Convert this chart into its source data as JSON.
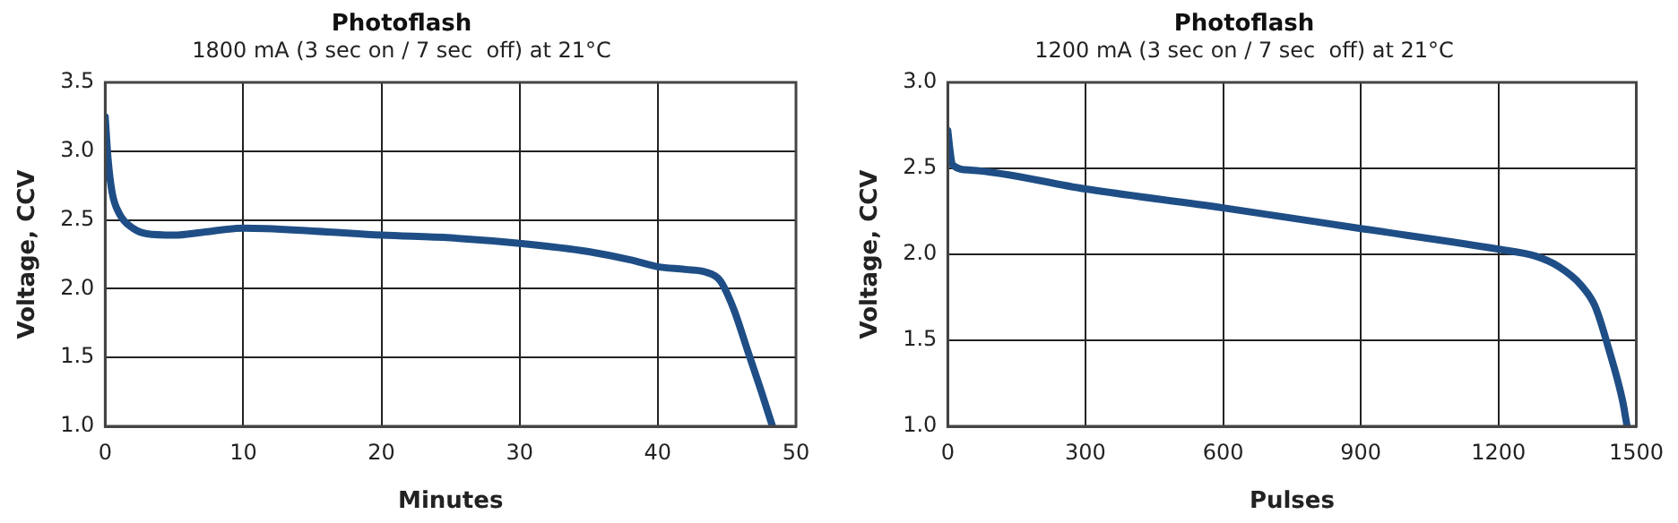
{
  "chart_data": [
    {
      "type": "line",
      "title": "Photoflash",
      "subtitle": "1800 mA (3 sec on / 7 sec  off) at 21°C",
      "xlabel": "Minutes",
      "ylabel": "Voltage, CCV",
      "x": [
        0,
        0.2,
        0.5,
        1,
        2,
        3,
        5,
        7,
        10,
        15,
        20,
        25,
        30,
        35,
        38,
        40,
        42,
        43.5,
        44.5,
        45.5,
        46.5,
        47.5,
        48.3
      ],
      "series": [
        {
          "color": "#1f4e86",
          "values": [
            3.25,
            2.95,
            2.7,
            2.55,
            2.44,
            2.4,
            2.39,
            2.41,
            2.44,
            2.42,
            2.39,
            2.37,
            2.33,
            2.27,
            2.21,
            2.16,
            2.14,
            2.12,
            2.06,
            1.85,
            1.55,
            1.25,
            1.0
          ]
        }
      ],
      "xlim": [
        0,
        50
      ],
      "xticks": [
        0,
        10,
        20,
        30,
        40,
        50
      ],
      "ylim": [
        1,
        3.5
      ],
      "yticks": [
        {
          "value": 1,
          "label": "1.0"
        },
        1.5,
        {
          "value": 2,
          "label": "2.0"
        },
        2.5,
        {
          "value": 3,
          "label": "3.0"
        },
        3.5
      ],
      "grid": true,
      "legend": false,
      "marker": "none",
      "line_style": "solid"
    },
    {
      "type": "line",
      "title": "Photoflash",
      "subtitle": "1200 mA (3 sec on / 7 sec  off) at 21°C",
      "xlabel": "Pulses",
      "ylabel": "Voltage, CCV",
      "x": [
        0,
        5,
        10,
        50,
        300,
        600,
        900,
        1200,
        1280,
        1330,
        1380,
        1410,
        1440,
        1470,
        1480
      ],
      "series": [
        {
          "color": "#1f4e86",
          "values": [
            2.72,
            2.6,
            2.52,
            2.49,
            2.38,
            2.27,
            2.15,
            2.03,
            1.99,
            1.93,
            1.82,
            1.7,
            1.45,
            1.15,
            1.0
          ]
        }
      ],
      "xlim": [
        0,
        1500
      ],
      "xticks": [
        0,
        300,
        600,
        900,
        1200,
        1500
      ],
      "ylim": [
        1,
        3
      ],
      "yticks": [
        {
          "value": 1,
          "label": "1.0"
        },
        1.5,
        {
          "value": 2,
          "label": "2.0"
        },
        2.5,
        {
          "value": 3,
          "label": "3.0"
        }
      ],
      "grid": true,
      "legend": false,
      "marker": "none",
      "line_style": "solid"
    }
  ]
}
